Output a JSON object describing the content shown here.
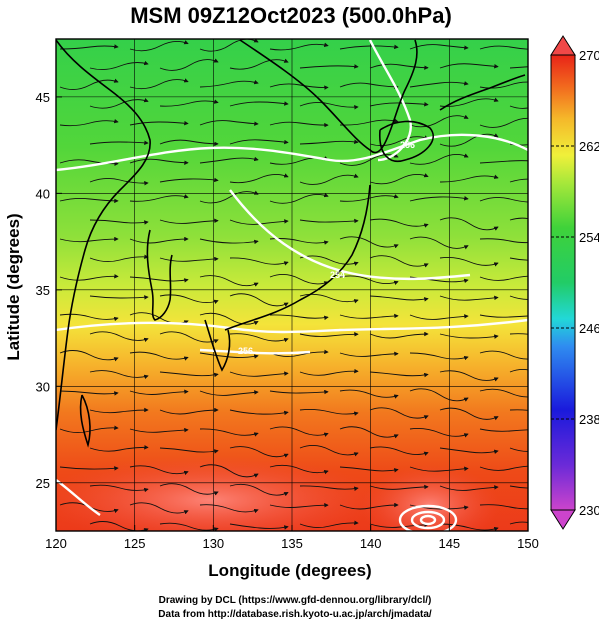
{
  "title": "MSM 09Z12Oct2023 (500.0hPa)",
  "xlabel": "Longitude (degrees)",
  "ylabel": "Latitude  (degrees)",
  "x_ticks": [
    "120",
    "125",
    "130",
    "135",
    "140",
    "145",
    "150"
  ],
  "y_ticks": [
    "25",
    "30",
    "35",
    "40",
    "45"
  ],
  "colorbar": {
    "ticks": [
      "270",
      "262",
      "254",
      "246",
      "238",
      "230"
    ],
    "range": [
      230,
      270
    ],
    "colors": [
      "#cc44cc",
      "#1a1adc",
      "#2f8cf0",
      "#22d8d8",
      "#22cc66",
      "#3fd23a",
      "#a8e83a",
      "#f0f03a",
      "#f5b82a",
      "#f26a1e",
      "#e82418",
      "#f04848"
    ]
  },
  "credits": {
    "line1": "Drawing by DCL (https://www.gfd-dennou.org/library/dcl/)",
    "line2": "Data from http://database.rish.kyoto-u.ac.jp/arch/jmadata/"
  },
  "map": {
    "lon_range": [
      120,
      150
    ],
    "lat_range": [
      22.5,
      48
    ],
    "contour_labels": [
      "256",
      "254",
      "256",
      "256",
      "260",
      "264"
    ],
    "wind": "streamlines mostly westerly (eastward) flow"
  }
}
